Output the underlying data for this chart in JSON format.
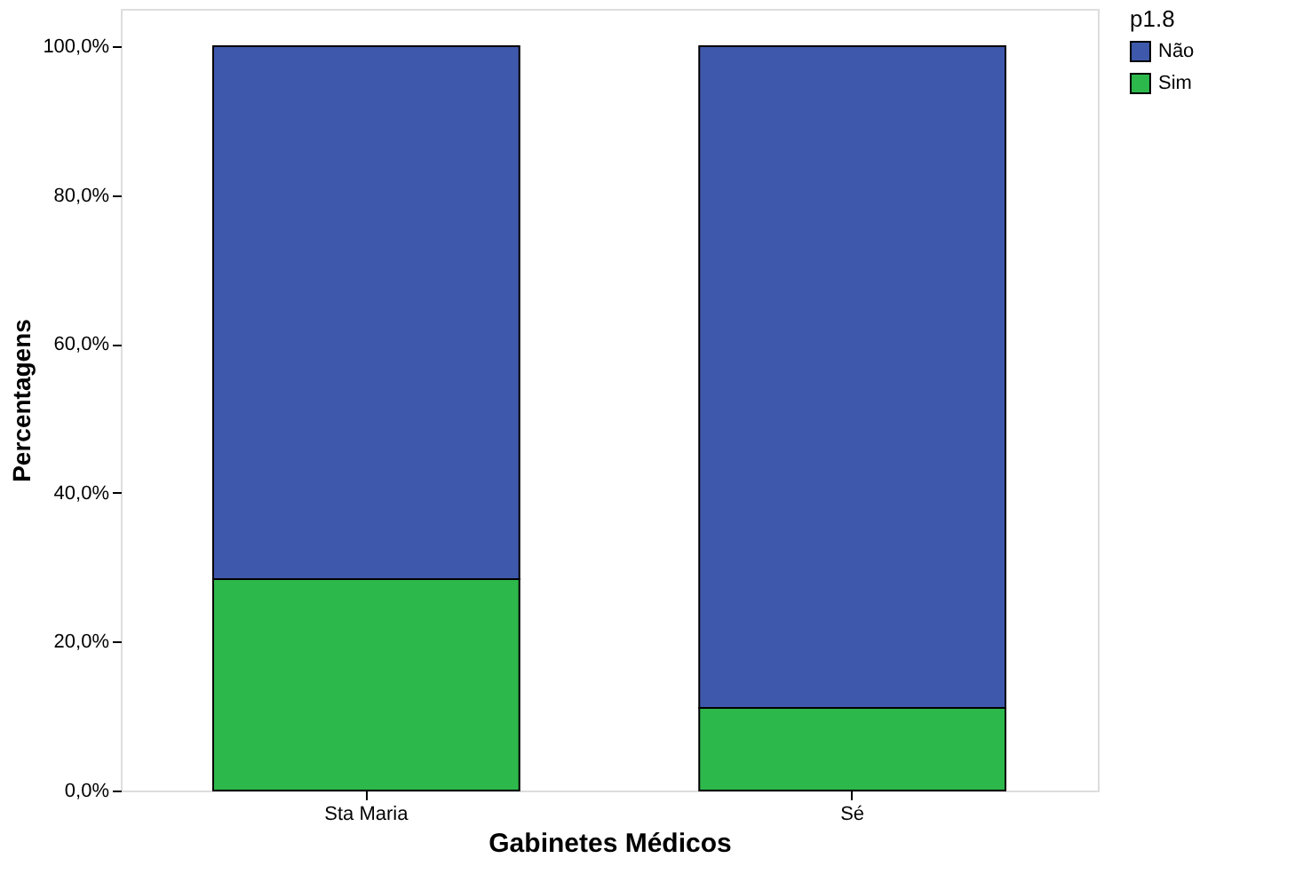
{
  "chart_data": {
    "type": "bar",
    "stacked": true,
    "xlabel": "Gabinetes Médicos",
    "ylabel": "Percentagens",
    "legend_title": "p1.8",
    "categories": [
      "Sta Maria",
      "Sé"
    ],
    "series": [
      {
        "name": "Sim",
        "color": "#2db84b",
        "values": [
          28.4,
          11.1
        ]
      },
      {
        "name": "Não",
        "color": "#3e58ac",
        "values": [
          71.6,
          88.9
        ]
      }
    ],
    "ylim": [
      0,
      105
    ],
    "yticks": [
      {
        "value": 0,
        "label": "0,0%"
      },
      {
        "value": 20,
        "label": "20,0%"
      },
      {
        "value": 40,
        "label": "40,0%"
      },
      {
        "value": 60,
        "label": "60,0%"
      },
      {
        "value": 80,
        "label": "80,0%"
      },
      {
        "value": 100,
        "label": "100,0%"
      }
    ],
    "grid": false,
    "legend": "top right"
  }
}
